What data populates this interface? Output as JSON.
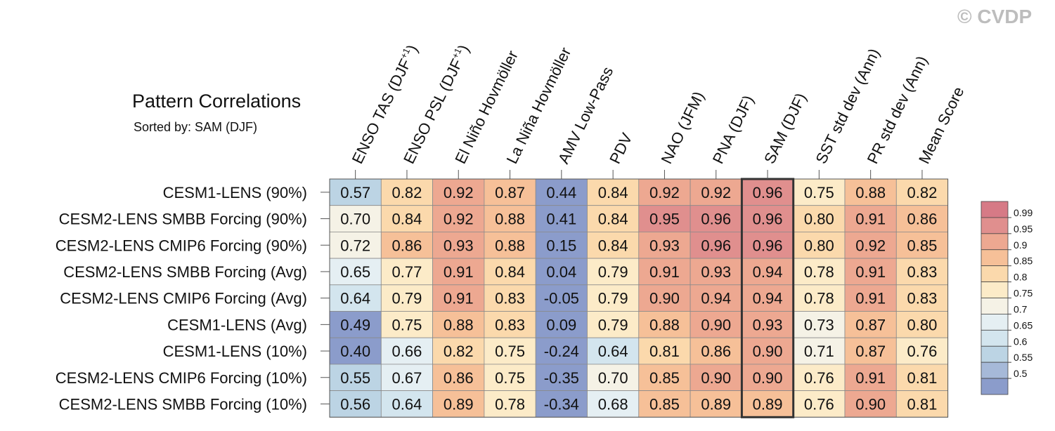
{
  "copyright": "© CVDP",
  "chart_data": {
    "type": "heatmap",
    "title": "Pattern Correlations",
    "subtitle": "Sorted by: SAM (DJF)",
    "columns": [
      {
        "base": "ENSO TAS (DJF",
        "sup": "+1",
        "tail": ")"
      },
      {
        "base": "ENSO PSL (DJF",
        "sup": "+1",
        "tail": ")"
      },
      {
        "base": "El Niño Hovmöller"
      },
      {
        "base": "La Niña Hovmöller"
      },
      {
        "base": "AMV Low-Pass"
      },
      {
        "base": "PDV"
      },
      {
        "base": "NAO (JFM)"
      },
      {
        "base": "PNA (DJF)"
      },
      {
        "base": "SAM (DJF)"
      },
      {
        "base": "SST std dev (Ann)"
      },
      {
        "base": "PR std dev (Ann)"
      },
      {
        "base": "Mean Score"
      }
    ],
    "highlight_column": 8,
    "rows": [
      {
        "label": "CESM1-LENS (90%)",
        "values": [
          "0.57",
          "0.82",
          "0.92",
          "0.87",
          "0.44",
          "0.84",
          "0.92",
          "0.92",
          "0.96",
          "0.75",
          "0.88",
          "0.82"
        ]
      },
      {
        "label": "CESM2-LENS SMBB Forcing (90%)",
        "values": [
          "0.70",
          "0.84",
          "0.92",
          "0.88",
          "0.41",
          "0.84",
          "0.95",
          "0.96",
          "0.96",
          "0.80",
          "0.91",
          "0.86"
        ]
      },
      {
        "label": "CESM2-LENS CMIP6 Forcing (90%)",
        "values": [
          "0.72",
          "0.86",
          "0.93",
          "0.88",
          "0.15",
          "0.84",
          "0.93",
          "0.96",
          "0.96",
          "0.80",
          "0.92",
          "0.85"
        ]
      },
      {
        "label": "CESM2-LENS SMBB Forcing (Avg)",
        "values": [
          "0.65",
          "0.77",
          "0.91",
          "0.84",
          "0.04",
          "0.79",
          "0.91",
          "0.93",
          "0.94",
          "0.78",
          "0.91",
          "0.83"
        ]
      },
      {
        "label": "CESM2-LENS CMIP6 Forcing (Avg)",
        "values": [
          "0.64",
          "0.79",
          "0.91",
          "0.83",
          "-0.05",
          "0.79",
          "0.90",
          "0.94",
          "0.94",
          "0.78",
          "0.91",
          "0.83"
        ]
      },
      {
        "label": "CESM1-LENS (Avg)",
        "values": [
          "0.49",
          "0.75",
          "0.88",
          "0.83",
          "0.09",
          "0.79",
          "0.88",
          "0.90",
          "0.93",
          "0.73",
          "0.87",
          "0.80"
        ]
      },
      {
        "label": "CESM1-LENS (10%)",
        "values": [
          "0.40",
          "0.66",
          "0.82",
          "0.75",
          "-0.24",
          "0.64",
          "0.81",
          "0.86",
          "0.90",
          "0.71",
          "0.87",
          "0.76"
        ]
      },
      {
        "label": "CESM2-LENS CMIP6 Forcing (10%)",
        "values": [
          "0.55",
          "0.67",
          "0.86",
          "0.75",
          "-0.35",
          "0.70",
          "0.85",
          "0.90",
          "0.90",
          "0.76",
          "0.91",
          "0.81"
        ]
      },
      {
        "label": "CESM2-LENS SMBB Forcing (10%)",
        "values": [
          "0.56",
          "0.64",
          "0.89",
          "0.78",
          "-0.34",
          "0.68",
          "0.85",
          "0.89",
          "0.89",
          "0.76",
          "0.90",
          "0.81"
        ]
      }
    ],
    "colorbar": {
      "levels": [
        "0.99",
        "0.95",
        "0.9",
        "0.85",
        "0.8",
        "0.75",
        "0.7",
        "0.65",
        "0.6",
        "0.55",
        "0.5"
      ],
      "colors": [
        "#8b9ccb",
        "#a6b9d8",
        "#bcd4e4",
        "#d3e5ee",
        "#e5eff3",
        "#f5f2e6",
        "#fcebc8",
        "#fbd9ac",
        "#f6c098",
        "#eda891",
        "#e08f8e",
        "#d67a86"
      ]
    }
  }
}
